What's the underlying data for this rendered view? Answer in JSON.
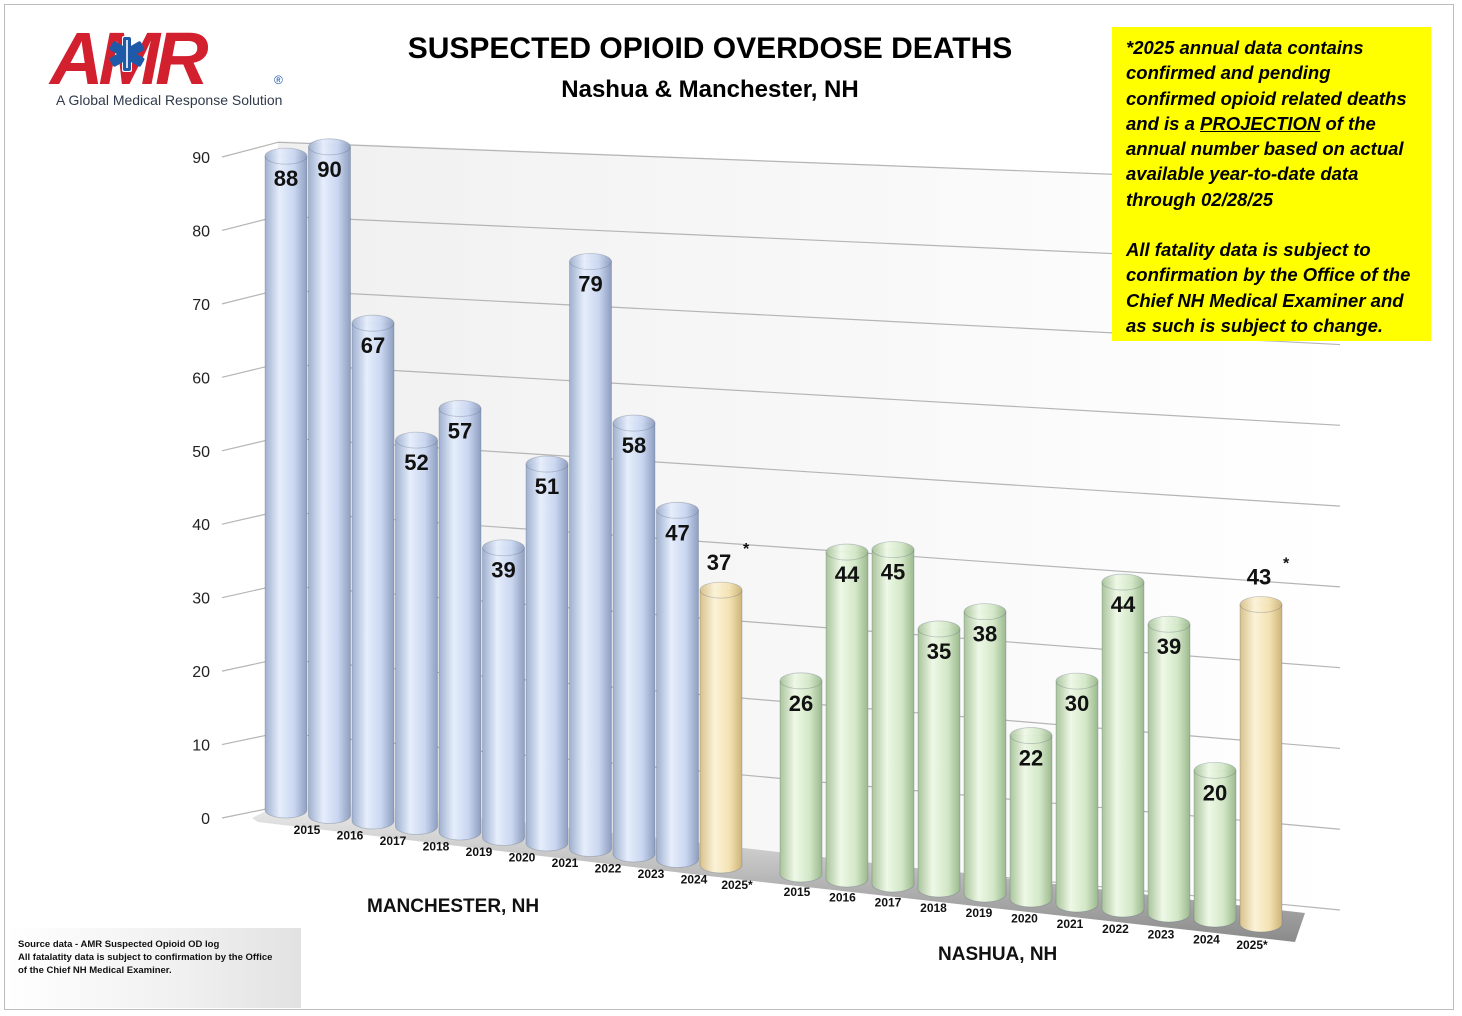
{
  "logo": {
    "letters": "AMR",
    "registered": "®",
    "tagline": "A Global Medical Response Solution"
  },
  "chart_data": {
    "type": "bar",
    "title": "SUSPECTED OPIOID OVERDOSE DEATHS",
    "subtitle": "Nashua & Manchester, NH",
    "ylim": [
      0,
      90
    ],
    "yticks": [
      0,
      10,
      20,
      30,
      40,
      50,
      60,
      70,
      80,
      90
    ],
    "grid": true,
    "groups": [
      {
        "name": "MANCHESTER, NH",
        "categories": [
          "2015",
          "2016",
          "2017",
          "2018",
          "2019",
          "2020",
          "2021",
          "2022",
          "2023",
          "2024",
          "2025*"
        ],
        "values": [
          88,
          90,
          67,
          52,
          57,
          39,
          51,
          79,
          58,
          47,
          37
        ],
        "projected": [
          false,
          false,
          false,
          false,
          false,
          false,
          false,
          false,
          false,
          false,
          true
        ]
      },
      {
        "name": "NASHUA, NH",
        "categories": [
          "2015",
          "2016",
          "2017",
          "2018",
          "2019",
          "2020",
          "2021",
          "2022",
          "2023",
          "2024",
          "2025*"
        ],
        "values": [
          26,
          44,
          45,
          35,
          38,
          22,
          30,
          44,
          39,
          20,
          43
        ],
        "projected": [
          false,
          false,
          false,
          false,
          false,
          false,
          false,
          false,
          false,
          false,
          true
        ]
      }
    ],
    "projection_marker": "*",
    "colors": {
      "manchester": "#c9d6f0",
      "nashua": "#d3e8c8",
      "projection": "#f3e2b2",
      "grid": "#b5b5b5"
    }
  },
  "note": {
    "line1_before": "*2025 annual data contains confirmed and pending confirmed opioid related deaths and is a ",
    "line1_emph": "PROJECTION",
    "line1_after": " of the annual number based on actual available year-to-date data through 02/28/25",
    "line2": "All fatality data is subject to confirmation by the Office of the Chief NH Medical Examiner and as such is subject to change."
  },
  "source": {
    "line1": "Source data - AMR Suspected Opioid OD log",
    "line2": "All fatalatity data is subject to confirmation by the Office",
    "line3": "of the Chief NH Medical Examiner."
  }
}
